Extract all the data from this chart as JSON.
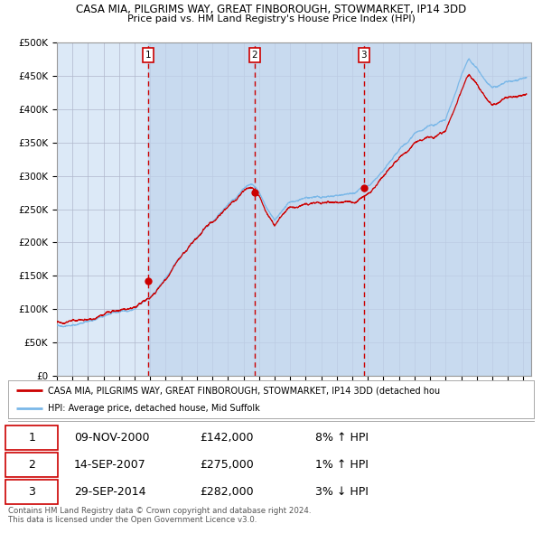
{
  "title1": "CASA MIA, PILGRIMS WAY, GREAT FINBOROUGH, STOWMARKET, IP14 3DD",
  "title2": "Price paid vs. HM Land Registry's House Price Index (HPI)",
  "plot_bg_color": "#dce9f7",
  "hpi_color": "#7bb8e8",
  "price_color": "#cc0000",
  "sale_marker_color": "#cc0000",
  "dashed_line_color": "#cc0000",
  "shade_color": "#c0d4ec",
  "purchases": [
    {
      "date_num": 2000.86,
      "price": 142000,
      "label": "1"
    },
    {
      "date_num": 2007.71,
      "price": 275000,
      "label": "2"
    },
    {
      "date_num": 2014.74,
      "price": 282000,
      "label": "3"
    }
  ],
  "legend_label_red": "CASA MIA, PILGRIMS WAY, GREAT FINBOROUGH, STOWMARKET, IP14 3DD (detached hou",
  "legend_label_blue": "HPI: Average price, detached house, Mid Suffolk",
  "table_rows": [
    [
      "1",
      "09-NOV-2000",
      "£142,000",
      "8% ↑ HPI"
    ],
    [
      "2",
      "14-SEP-2007",
      "£275,000",
      "1% ↑ HPI"
    ],
    [
      "3",
      "29-SEP-2014",
      "£282,000",
      "3% ↓ HPI"
    ]
  ],
  "footer": "Contains HM Land Registry data © Crown copyright and database right 2024.\nThis data is licensed under the Open Government Licence v3.0.",
  "ylim": [
    0,
    500000
  ],
  "xlim_start": 1995.0,
  "xlim_end": 2025.5,
  "hpi_key_years": [
    1995,
    1997,
    1999,
    2000,
    2001,
    2002,
    2003,
    2004,
    2005,
    2006,
    2007,
    2007.5,
    2008,
    2009,
    2010,
    2011,
    2012,
    2013,
    2014,
    2015,
    2016,
    2017,
    2018,
    2019,
    2020,
    2021,
    2021.5,
    2022,
    2022.5,
    2023,
    2024,
    2025
  ],
  "hpi_key_vals": [
    75000,
    82000,
    95000,
    102000,
    120000,
    148000,
    175000,
    200000,
    220000,
    245000,
    268000,
    272000,
    258000,
    215000,
    240000,
    248000,
    248000,
    252000,
    255000,
    265000,
    288000,
    318000,
    338000,
    352000,
    362000,
    430000,
    458000,
    445000,
    425000,
    412000,
    420000,
    425000
  ],
  "price_offset": [
    1.07,
    1.07,
    1.07,
    1.08,
    1.07,
    1.06,
    1.06,
    1.05,
    1.05,
    1.04,
    1.03,
    1.02,
    1.02,
    1.01,
    1.02,
    1.02,
    1.02,
    1.02,
    1.02,
    1.03,
    1.03,
    1.02,
    1.01,
    1.01,
    1.01,
    1.0,
    1.0,
    1.0,
    1.0,
    1.0,
    1.0,
    1.0
  ]
}
